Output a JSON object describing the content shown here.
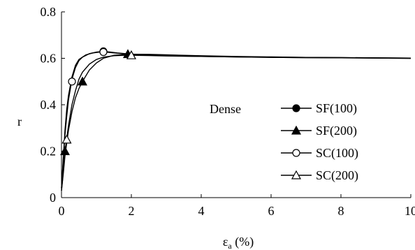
{
  "chart_data": {
    "type": "line",
    "xlabel": "εa (%)",
    "xlabel_main": "ε",
    "xlabel_sub": "a",
    "xlabel_rest": " (%)",
    "ylabel": "r",
    "xlim": [
      0,
      10
    ],
    "ylim": [
      0,
      0.8
    ],
    "xticks": [
      0,
      2,
      4,
      6,
      8,
      10
    ],
    "yticks": [
      0,
      0.2,
      0.4,
      0.6,
      0.8
    ],
    "xtick_labels": [
      "0",
      "2",
      "4",
      "6",
      "8",
      "10"
    ],
    "ytick_labels": [
      "0",
      "0.2",
      "0.4",
      "0.6",
      "0.8"
    ],
    "grid": false,
    "legend_position": "right",
    "annotation": "Dense",
    "series": [
      {
        "name": "SF(100)",
        "marker": "filled-circle",
        "x": [
          0,
          0.05,
          0.1,
          0.15,
          0.2,
          0.3,
          0.4,
          0.5,
          0.6,
          0.8,
          1.0,
          1.2,
          1.4,
          1.6,
          2.0,
          2.5,
          3.0,
          4.0,
          5.0,
          6.0,
          7.0,
          8.0,
          9.0,
          10.0
        ],
        "y": [
          0.04,
          0.16,
          0.27,
          0.35,
          0.42,
          0.51,
          0.56,
          0.59,
          0.605,
          0.62,
          0.627,
          0.63,
          0.627,
          0.623,
          0.618,
          0.614,
          0.612,
          0.609,
          0.607,
          0.605,
          0.604,
          0.603,
          0.602,
          0.601
        ],
        "markers": [
          [
            1.2,
            0.63
          ]
        ]
      },
      {
        "name": "SF(200)",
        "marker": "filled-triangle",
        "x": [
          0,
          0.05,
          0.1,
          0.2,
          0.3,
          0.4,
          0.5,
          0.6,
          0.8,
          1.0,
          1.2,
          1.5,
          1.9,
          2.5,
          3.0,
          4.0,
          5.0,
          6.0,
          7.0,
          8.0,
          9.0,
          10.0
        ],
        "y": [
          0.03,
          0.1,
          0.18,
          0.29,
          0.37,
          0.43,
          0.47,
          0.5,
          0.55,
          0.58,
          0.6,
          0.613,
          0.618,
          0.617,
          0.615,
          0.611,
          0.608,
          0.606,
          0.604,
          0.603,
          0.602,
          0.601
        ],
        "markers": [
          [
            0.1,
            0.2
          ],
          [
            0.6,
            0.5
          ],
          [
            1.9,
            0.618
          ]
        ]
      },
      {
        "name": "SC(100)",
        "marker": "open-circle",
        "x": [
          0,
          0.05,
          0.1,
          0.15,
          0.2,
          0.3,
          0.4,
          0.5,
          0.7,
          0.9,
          1.1,
          1.3,
          1.6,
          2.0,
          2.5,
          3.0,
          4.0,
          5.0,
          6.0,
          7.0,
          8.0,
          9.0,
          10.0
        ],
        "y": [
          0.04,
          0.17,
          0.29,
          0.38,
          0.44,
          0.52,
          0.57,
          0.595,
          0.615,
          0.623,
          0.627,
          0.626,
          0.622,
          0.617,
          0.613,
          0.611,
          0.608,
          0.606,
          0.604,
          0.603,
          0.602,
          0.601,
          0.6
        ],
        "markers": [
          [
            0.3,
            0.5
          ],
          [
            1.2,
            0.627
          ]
        ]
      },
      {
        "name": "SC(200)",
        "marker": "open-triangle",
        "x": [
          0,
          0.05,
          0.1,
          0.2,
          0.3,
          0.4,
          0.5,
          0.6,
          0.8,
          1.0,
          1.2,
          1.5,
          1.8,
          2.0,
          2.5,
          3.0,
          4.0,
          5.0,
          6.0,
          7.0,
          8.0,
          9.0,
          10.0
        ],
        "y": [
          0.03,
          0.11,
          0.2,
          0.31,
          0.4,
          0.46,
          0.51,
          0.54,
          0.575,
          0.595,
          0.605,
          0.611,
          0.613,
          0.613,
          0.612,
          0.61,
          0.608,
          0.606,
          0.604,
          0.603,
          0.602,
          0.601,
          0.6
        ],
        "markers": [
          [
            0.15,
            0.25
          ],
          [
            2.0,
            0.613
          ]
        ]
      }
    ]
  }
}
